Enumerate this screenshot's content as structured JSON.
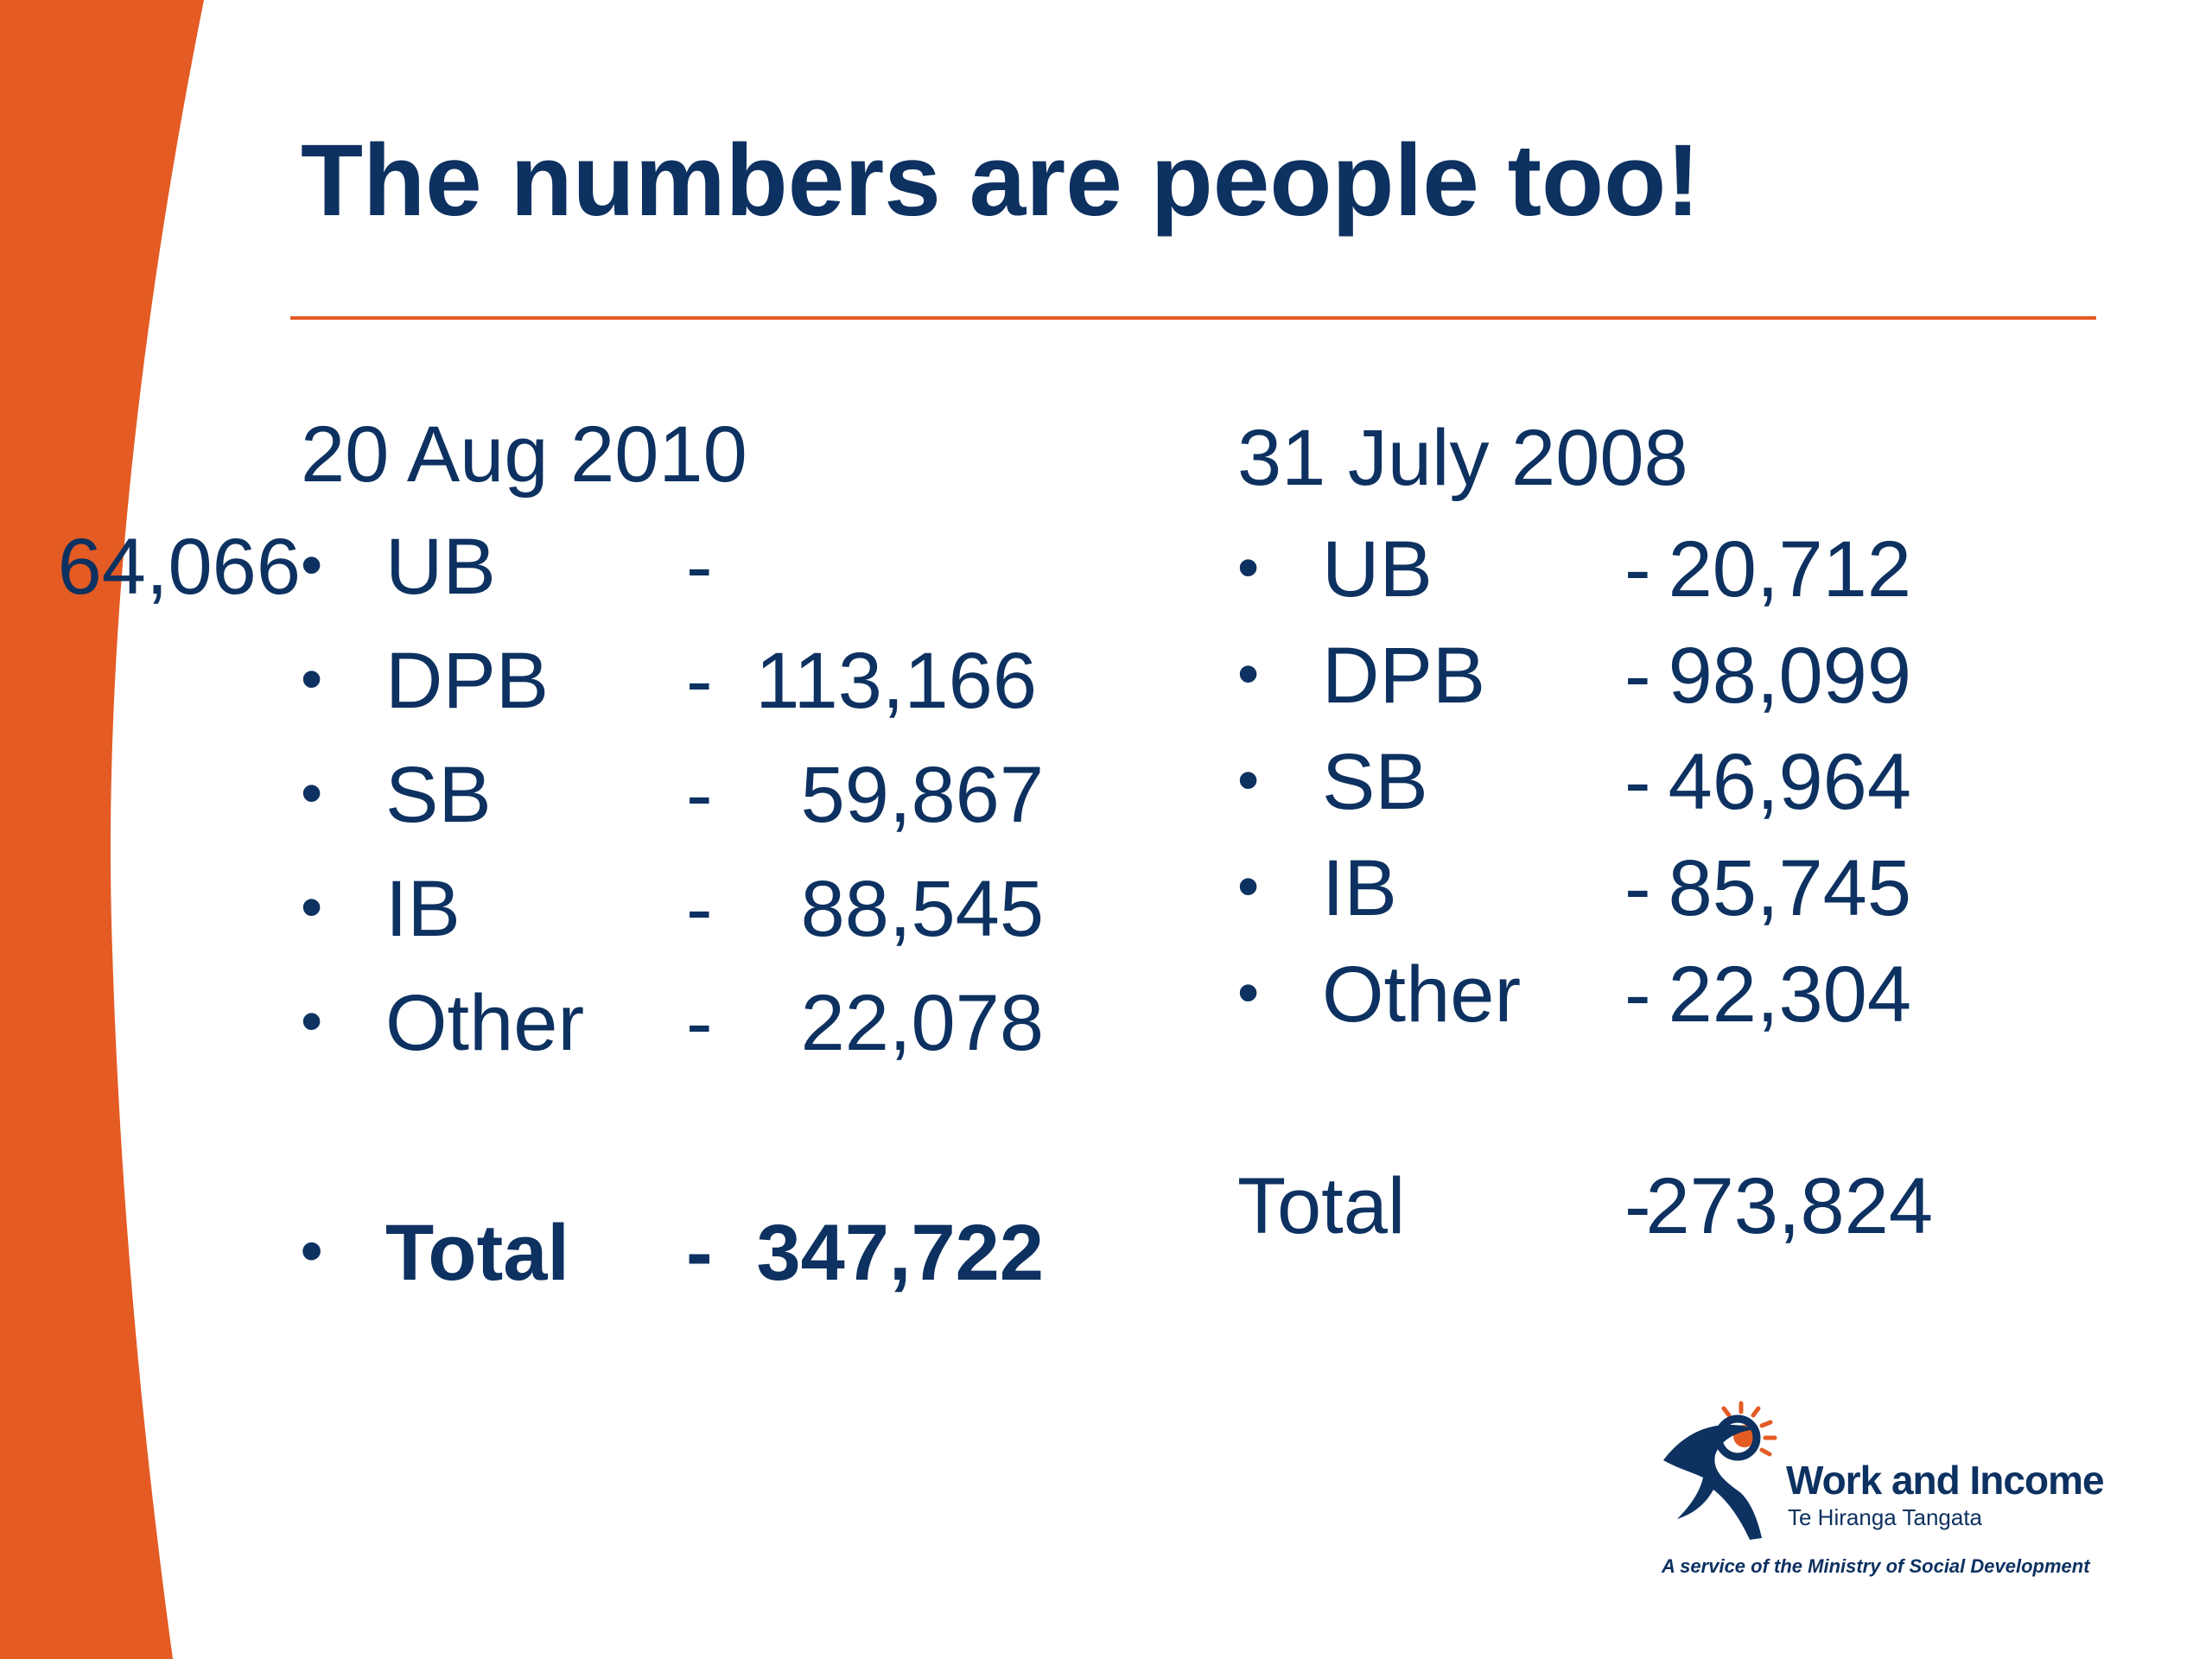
{
  "slide": {
    "title": "The numbers are people too!"
  },
  "columns": [
    {
      "date": "20 Aug 2010",
      "rows": [
        {
          "bullet": "•",
          "label": "UB",
          "dash": "-",
          "value": "64,066"
        },
        {
          "bullet": "•",
          "label": "DPB",
          "dash": "-",
          "value": "113,166"
        },
        {
          "bullet": "•",
          "label": "SB",
          "dash": "-",
          "value": "59,867"
        },
        {
          "bullet": "•",
          "label": "IB",
          "dash": "-",
          "value": "88,545"
        },
        {
          "bullet": "•",
          "label": "Other",
          "dash": "-",
          "value": "22,078"
        }
      ],
      "total": {
        "bullet": "•",
        "label": "Total",
        "dash": "-",
        "value": "347,722"
      }
    },
    {
      "date": "31 July 2008",
      "rows": [
        {
          "bullet": "•",
          "label": "UB",
          "dash": "-",
          "value": "20,712"
        },
        {
          "bullet": "•",
          "label": "DPB",
          "dash": "-",
          "value": "98,099"
        },
        {
          "bullet": "•",
          "label": "SB",
          "dash": "-",
          "value": "46,964"
        },
        {
          "bullet": "•",
          "label": "IB",
          "dash": "-",
          "value": "85,745"
        },
        {
          "bullet": "•",
          "label": "Other",
          "dash": "-",
          "value": "22,304"
        }
      ],
      "total": {
        "label": "Total",
        "dash": "-",
        "value": "273,824"
      }
    }
  ],
  "logo": {
    "name": "Work and Income",
    "subtitle": "Te Hiranga Tangata",
    "tagline": "A service of the Ministry of Social Development"
  },
  "colors": {
    "accent_orange": "#e45b24",
    "text_navy": "#0d3160"
  }
}
